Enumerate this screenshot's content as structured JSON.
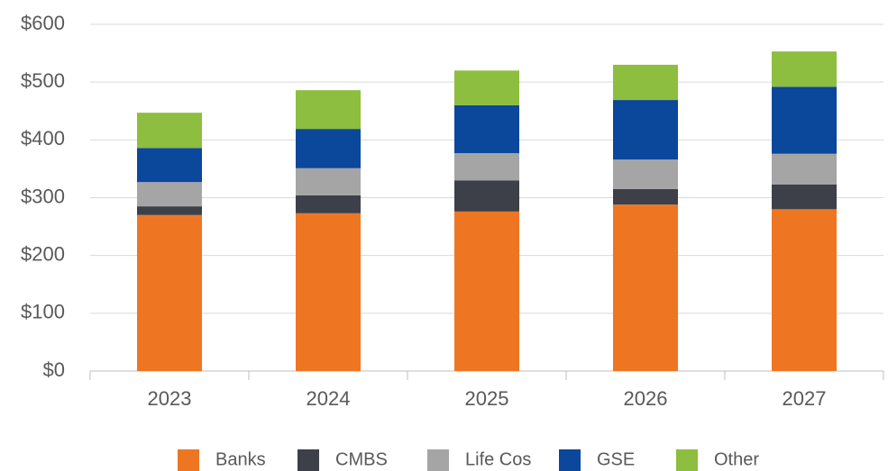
{
  "chart_data": {
    "type": "stacked_bar",
    "categories": [
      "2023",
      "2024",
      "2025",
      "2026",
      "2027"
    ],
    "series": [
      {
        "name": "Banks",
        "color": "#ee7623",
        "values": [
          270,
          273,
          276,
          288,
          280
        ]
      },
      {
        "name": "CMBS",
        "color": "#3d4049",
        "values": [
          15,
          31,
          54,
          27,
          43
        ]
      },
      {
        "name": "Life Cos",
        "color": "#a5a5a5",
        "values": [
          42,
          47,
          47,
          51,
          53
        ]
      },
      {
        "name": "GSE",
        "color": "#0b479b",
        "values": [
          59,
          68,
          83,
          103,
          116
        ]
      },
      {
        "name": "Other",
        "color": "#8dbe3f",
        "values": [
          61,
          67,
          60,
          61,
          61
        ]
      }
    ],
    "ylim": [
      0,
      600
    ],
    "yticks": [
      {
        "value": 0,
        "label": "$0"
      },
      {
        "value": 100,
        "label": "$100"
      },
      {
        "value": 200,
        "label": "$200"
      },
      {
        "value": 300,
        "label": "$300"
      },
      {
        "value": 400,
        "label": "$400"
      },
      {
        "value": 500,
        "label": "$500"
      },
      {
        "value": 600,
        "label": "$600"
      }
    ],
    "grid": true,
    "legend": "bottom"
  }
}
